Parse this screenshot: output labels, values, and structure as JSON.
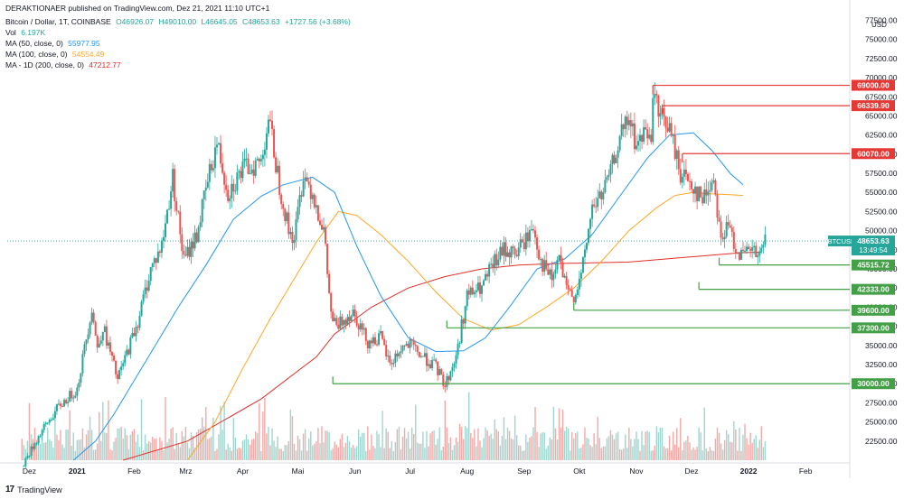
{
  "header": {
    "published": "DERAKTIONAER published on TradingView.com, Dez 21, 2021 11:10 UTC+1",
    "symbol_line": "Bitcoin / Dollar, 1T, COINBASE",
    "ohlc": {
      "o": "O46926.07",
      "h": "H49010.00",
      "l": "L46645.05",
      "c": "C48653.63",
      "chg": "+1727.56 (+3.68%)"
    },
    "vol_label": "Vol",
    "vol_value": "6.197K",
    "ma50_label": "MA (50, close, 0)",
    "ma50_value": "55977.95",
    "ma100_label": "MA (100, close, 0)",
    "ma100_value": "54554.49",
    "ma200_label": "MA - 1D (200, close, 0)",
    "ma200_value": "47212.77"
  },
  "footer": {
    "brand": "TradingView",
    "logo": "17"
  },
  "colors": {
    "up": "#26a69a",
    "down": "#ef5350",
    "ma50": "#2196f3",
    "ma100": "#ffa726",
    "ma200": "#e0302a",
    "resistance": "#e53935",
    "support": "#43a047",
    "vol_up": "#9fd6cf",
    "vol_down": "#f4a9a7",
    "price_label": "#26a69a"
  },
  "chart_data": {
    "type": "candlestick",
    "symbol": "BTCUSD",
    "currency": "USD",
    "last_price": "48653.63",
    "countdown": "13:49:54",
    "y_ticks": [
      "77500.00",
      "75000.00",
      "72500.00",
      "70000.00",
      "67500.00",
      "65000.00",
      "62500.00",
      "60000.00",
      "57500.00",
      "55000.00",
      "52500.00",
      "50000.00",
      "47500.00",
      "45000.00",
      "42500.00",
      "40000.00",
      "37500.00",
      "35000.00",
      "32500.00",
      "30000.00",
      "27500.00",
      "25000.00",
      "22500.00"
    ],
    "x_ticks": [
      "Dez",
      "2021",
      "Feb",
      "Mrz",
      "Apr",
      "Mai",
      "Jun",
      "Jul",
      "Aug",
      "Sep",
      "Okt",
      "Nov",
      "Dez",
      "2022",
      "Feb"
    ],
    "x_tick_days": [
      -26,
      0,
      31,
      59,
      90,
      120,
      151,
      181,
      212,
      243,
      273,
      304,
      334,
      365,
      396
    ],
    "ylim": [
      20000,
      78500
    ],
    "xlim": [
      -38,
      420
    ],
    "resistance_levels": [
      {
        "value": 69000.0,
        "label": "69000.00",
        "start_day": 313
      },
      {
        "value": 66339.9,
        "label": "66339.90",
        "start_day": 318
      },
      {
        "value": 60070.0,
        "label": "60070.00",
        "start_day": 329
      }
    ],
    "support_levels": [
      {
        "value": 45515.72,
        "label": "45515.72",
        "start_day": 349
      },
      {
        "value": 42333.0,
        "label": "42333.00",
        "start_day": 338
      },
      {
        "value": 39600.0,
        "label": "39600.00",
        "start_day": 270
      },
      {
        "value": 37300.0,
        "label": "37300.00",
        "start_day": 201
      },
      {
        "value": 30000.0,
        "label": "30000.00",
        "start_day": 139
      }
    ],
    "price_path": [
      [
        -30,
        19200
      ],
      [
        -20,
        23500
      ],
      [
        -10,
        27000
      ],
      [
        0,
        29300
      ],
      [
        8,
        40000
      ],
      [
        11,
        34500
      ],
      [
        14,
        37500
      ],
      [
        22,
        30500
      ],
      [
        27,
        34000
      ],
      [
        33,
        38200
      ],
      [
        40,
        45000
      ],
      [
        46,
        48000
      ],
      [
        52,
        57000
      ],
      [
        58,
        46000
      ],
      [
        65,
        49500
      ],
      [
        72,
        57500
      ],
      [
        76,
        61500
      ],
      [
        82,
        55000
      ],
      [
        90,
        58000
      ],
      [
        100,
        59000
      ],
      [
        104,
        64800
      ],
      [
        110,
        56000
      ],
      [
        115,
        50000
      ],
      [
        118,
        49000
      ],
      [
        123,
        57500
      ],
      [
        128,
        55000
      ],
      [
        134,
        50000
      ],
      [
        138,
        39000
      ],
      [
        141,
        37300
      ],
      [
        145,
        38500
      ],
      [
        150,
        39500
      ],
      [
        158,
        35500
      ],
      [
        165,
        36000
      ],
      [
        170,
        32500
      ],
      [
        177,
        34800
      ],
      [
        181,
        35000
      ],
      [
        188,
        33500
      ],
      [
        195,
        32200
      ],
      [
        200,
        29800
      ],
      [
        206,
        33500
      ],
      [
        212,
        41500
      ],
      [
        220,
        42500
      ],
      [
        226,
        45500
      ],
      [
        232,
        47500
      ],
      [
        238,
        47000
      ],
      [
        243,
        48500
      ],
      [
        248,
        50500
      ],
      [
        252,
        46000
      ],
      [
        258,
        43500
      ],
      [
        262,
        46500
      ],
      [
        266,
        42000
      ],
      [
        270,
        41500
      ],
      [
        274,
        44000
      ],
      [
        280,
        53000
      ],
      [
        286,
        55000
      ],
      [
        290,
        57500
      ],
      [
        294,
        61500
      ],
      [
        300,
        64500
      ],
      [
        304,
        61000
      ],
      [
        310,
        63500
      ],
      [
        312,
        60500
      ],
      [
        313,
        69000
      ],
      [
        316,
        65000
      ],
      [
        321,
        64000
      ],
      [
        328,
        57500
      ],
      [
        333,
        56500
      ],
      [
        340,
        54000
      ],
      [
        346,
        57000
      ],
      [
        350,
        49000
      ],
      [
        354,
        50500
      ],
      [
        358,
        48000
      ],
      [
        362,
        46500
      ],
      [
        366,
        47500
      ],
      [
        371,
        46400
      ],
      [
        374,
        48653
      ]
    ],
    "ma50_path": [
      [
        -2,
        20000
      ],
      [
        10,
        22500
      ],
      [
        20,
        26000
      ],
      [
        40,
        34000
      ],
      [
        55,
        40000
      ],
      [
        70,
        45500
      ],
      [
        85,
        51500
      ],
      [
        100,
        54500
      ],
      [
        112,
        56000
      ],
      [
        128,
        57000
      ],
      [
        140,
        55000
      ],
      [
        152,
        48000
      ],
      [
        165,
        41500
      ],
      [
        180,
        36000
      ],
      [
        195,
        34200
      ],
      [
        210,
        34300
      ],
      [
        222,
        36000
      ],
      [
        235,
        40000
      ],
      [
        250,
        45000
      ],
      [
        265,
        46300
      ],
      [
        280,
        49500
      ],
      [
        295,
        54500
      ],
      [
        310,
        59500
      ],
      [
        322,
        62500
      ],
      [
        335,
        62800
      ],
      [
        345,
        60500
      ],
      [
        355,
        57500
      ],
      [
        362,
        56000
      ]
    ],
    "ma100_path": [
      [
        60,
        20000
      ],
      [
        75,
        25000
      ],
      [
        90,
        32000
      ],
      [
        105,
        38500
      ],
      [
        120,
        44500
      ],
      [
        130,
        48500
      ],
      [
        142,
        52500
      ],
      [
        152,
        52000
      ],
      [
        165,
        49500
      ],
      [
        180,
        46000
      ],
      [
        195,
        42000
      ],
      [
        210,
        38500
      ],
      [
        225,
        37000
      ],
      [
        240,
        37700
      ],
      [
        255,
        40000
      ],
      [
        270,
        42500
      ],
      [
        285,
        46000
      ],
      [
        300,
        50000
      ],
      [
        315,
        53000
      ],
      [
        325,
        54600
      ],
      [
        335,
        55000
      ],
      [
        345,
        54800
      ],
      [
        355,
        54700
      ],
      [
        362,
        54600
      ]
    ],
    "ma200_path": [
      [
        25,
        20000
      ],
      [
        60,
        22500
      ],
      [
        100,
        28000
      ],
      [
        130,
        33500
      ],
      [
        140,
        36500
      ],
      [
        160,
        40000
      ],
      [
        180,
        42500
      ],
      [
        200,
        44000
      ],
      [
        220,
        45000
      ],
      [
        240,
        45500
      ],
      [
        260,
        45700
      ],
      [
        280,
        45800
      ],
      [
        300,
        45900
      ],
      [
        320,
        46300
      ],
      [
        340,
        46700
      ],
      [
        360,
        47100
      ],
      [
        372,
        47212
      ]
    ]
  }
}
